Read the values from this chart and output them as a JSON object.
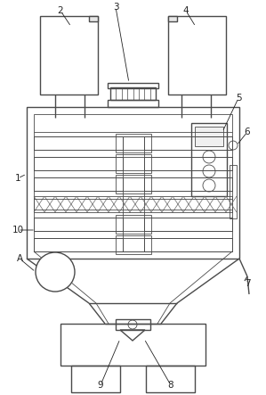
{
  "background_color": "#ffffff",
  "line_color": "#4a4a4a",
  "lw": 1.0,
  "thin_lw": 0.6,
  "label_color": "#222222",
  "label_fontsize": 7.5
}
